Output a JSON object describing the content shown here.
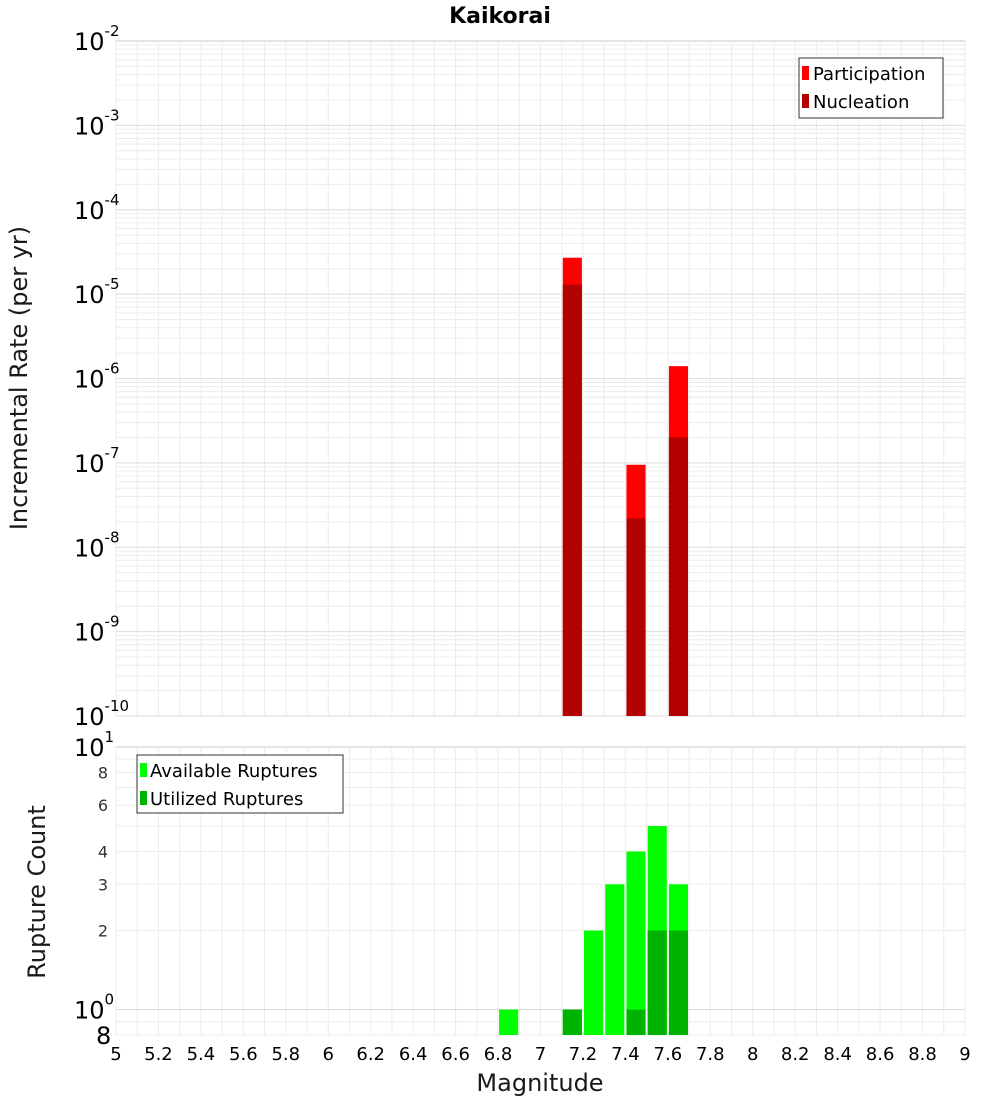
{
  "chart_data": [
    {
      "type": "bar",
      "title": "Kaikorai",
      "xlabel": "",
      "ylabel": "Incremental Rate (per yr)",
      "y_scale": "log",
      "ylim": [
        1e-10,
        0.01
      ],
      "xlim": [
        5,
        9
      ],
      "grid": true,
      "bar_width": 0.09,
      "legend": {
        "position": "top-right",
        "entries": [
          {
            "name": "Participation",
            "color": "#ff0000"
          },
          {
            "name": "Nucleation",
            "color": "#b30000"
          }
        ]
      },
      "y_tick_labels": [
        {
          "value": 0.01,
          "base": "10",
          "exp": "-2"
        },
        {
          "value": 0.001,
          "base": "10",
          "exp": "-3"
        },
        {
          "value": 0.0001,
          "base": "10",
          "exp": "-4"
        },
        {
          "value": 1e-05,
          "base": "10",
          "exp": "-5"
        },
        {
          "value": 1e-06,
          "base": "10",
          "exp": "-6"
        },
        {
          "value": 1e-07,
          "base": "10",
          "exp": "-7"
        },
        {
          "value": 1e-08,
          "base": "10",
          "exp": "-8"
        },
        {
          "value": 1e-09,
          "base": "10",
          "exp": "-9"
        },
        {
          "value": 1e-10,
          "base": "10",
          "exp": "-10"
        }
      ],
      "series": [
        {
          "name": "Participation",
          "color": "#ff0000",
          "x": [
            7.15,
            7.45,
            7.65
          ],
          "values": [
            2.7e-05,
            9.5e-08,
            1.4e-06
          ]
        },
        {
          "name": "Nucleation",
          "color": "#b30000",
          "x": [
            7.15,
            7.45,
            7.65
          ],
          "values": [
            1.3e-05,
            2.2e-08,
            2e-07
          ]
        }
      ]
    },
    {
      "type": "bar",
      "title": "",
      "xlabel": "Magnitude",
      "ylabel": "Rupture Count",
      "y_scale": "log",
      "ylim": [
        0.8,
        10
      ],
      "xlim": [
        5,
        9
      ],
      "grid": true,
      "bar_width": 0.09,
      "legend": {
        "position": "top-left",
        "entries": [
          {
            "name": "Available Ruptures",
            "color": "#00ff00"
          },
          {
            "name": "Utilized Ruptures",
            "color": "#00b300"
          }
        ]
      },
      "y_tick_labels": [
        {
          "value": 10,
          "base": "10",
          "exp": "1"
        },
        {
          "value": 1,
          "base": "10",
          "exp": "0"
        }
      ],
      "y_minor_tick_labels": [
        {
          "value": 8,
          "label": "8"
        },
        {
          "value": 6,
          "label": "6"
        },
        {
          "value": 4,
          "label": "4"
        },
        {
          "value": 3,
          "label": "3"
        },
        {
          "value": 2,
          "label": "2"
        }
      ],
      "y_bottom_label": "8",
      "x_tick_labels": [
        "5",
        "5.2",
        "5.4",
        "5.6",
        "5.8",
        "6",
        "6.2",
        "6.4",
        "6.6",
        "6.8",
        "7",
        "7.2",
        "7.4",
        "7.6",
        "7.8",
        "8",
        "8.2",
        "8.4",
        "8.6",
        "8.8",
        "9"
      ],
      "series": [
        {
          "name": "Available Ruptures",
          "color": "#00ff00",
          "x": [
            6.85,
            7.15,
            7.25,
            7.35,
            7.45,
            7.55,
            7.65
          ],
          "values": [
            1,
            1,
            2,
            3,
            4,
            5,
            3
          ]
        },
        {
          "name": "Utilized Ruptures",
          "color": "#00b300",
          "x": [
            7.15,
            7.45,
            7.55,
            7.65
          ],
          "values": [
            1,
            1,
            2,
            2
          ]
        }
      ]
    }
  ]
}
